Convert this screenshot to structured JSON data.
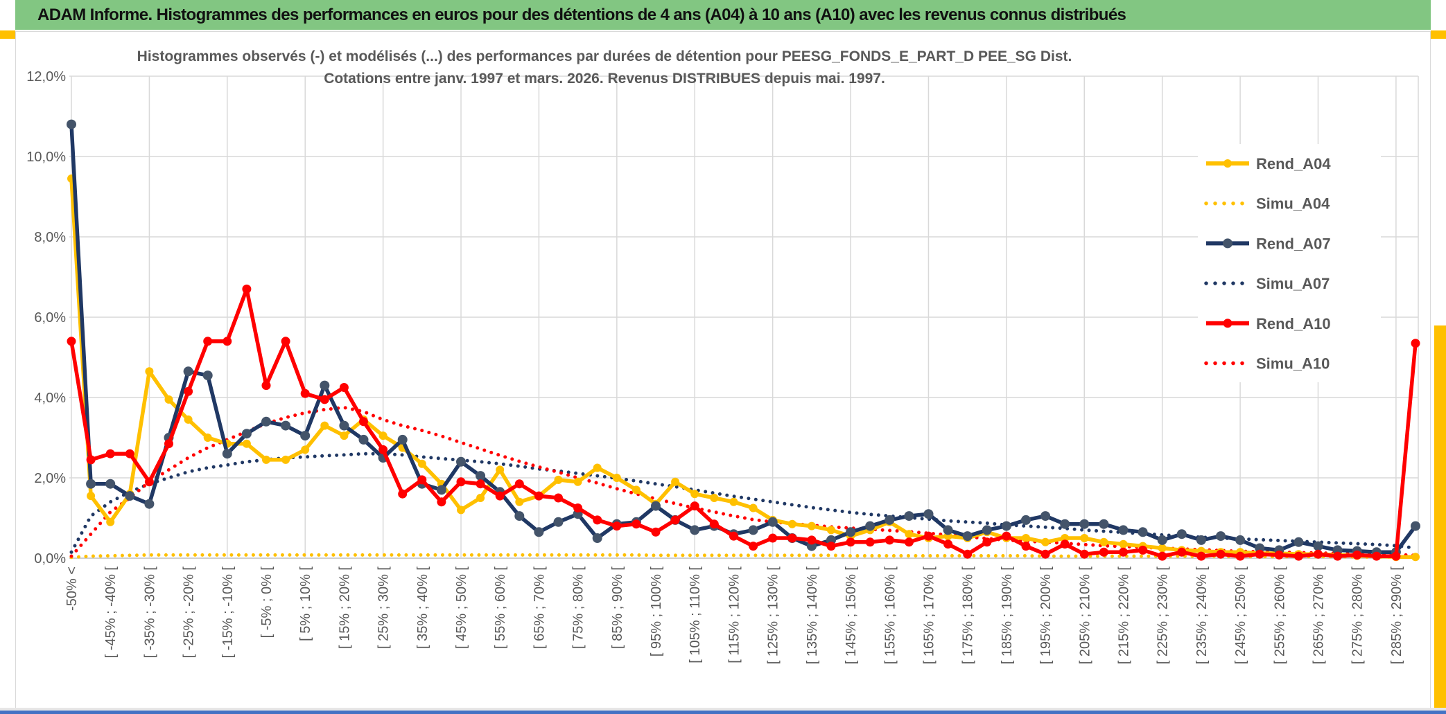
{
  "window": {
    "title": "ADAM Informe. Histogrammes des performances en euros pour des détentions de 4 ans (A04) à 10 ans (A10) avec les revenus connus distribués"
  },
  "colors": {
    "header_green": "#82C682",
    "accent_gold": "#FFC000",
    "bottom_blue": "#4472C4",
    "grid": "#D9D9D9",
    "axis": "#BFBFBF",
    "text_gray": "#595959",
    "series_yellow": "#FFC000",
    "series_navy": "#203864",
    "navy_marker": "#44546A",
    "series_red": "#FF0000"
  },
  "chart_data": {
    "type": "line",
    "title_line1": "Histogrammes observés (-) et modélisés (...) des performances par durées de détention pour PEESG_FONDS_E_PART_D PEE_SG Dist.",
    "title_line2": "Cotations entre janv. 1997 et mars. 2026. Revenus DISTRIBUES depuis mai. 1997.",
    "ylim": [
      0,
      12
    ],
    "ytick_labels": [
      "0,0%",
      "2,0%",
      "4,0%",
      "6,0%",
      "8,0%",
      "10,0%",
      "12,0%"
    ],
    "grid": "both",
    "legend_position": "right-overlay",
    "n_points": 70,
    "x_label_every": 2,
    "grid_every_n_points": 4,
    "x_labels": [
      "-50% <",
      "[ -45% ; -40% [",
      "[ -35% ; -30% [",
      "[ -25% ; -20% [",
      "[ -15% ; -10% [",
      "[ -5% ; 0% [",
      "[ 5% ; 10% [",
      "[ 15% ; 20% [",
      "[ 25% ; 30% [",
      "[ 35% ; 40% [",
      "[ 45% ; 50% [",
      "[ 55% ; 60% [",
      "[ 65% ; 70% [",
      "[ 75% ; 80% [",
      "[ 85% ; 90% [",
      "[ 95% ; 100% [",
      "[ 105% ; 110% [",
      "[ 115% ; 120% [",
      "[ 125% ; 130% [",
      "[ 135% ; 140% [",
      "[ 145% ; 150% [",
      "[ 155% ; 160% [",
      "[ 165% ; 170% [",
      "[ 175% ; 180% [",
      "[ 185% ; 190% [",
      "[ 195% ; 200% [",
      "[ 205% ; 210% [",
      "[ 215% ; 220% [",
      "[ 225% ; 230% [",
      "[ 235% ; 240% [",
      "[ 245% ; 250% [",
      "[ 255% ; 260% [",
      "[ 265% ; 270% [",
      "[ 275% ; 280% [",
      "[ 285% ; 290% ["
    ],
    "series": [
      {
        "name": "Rend_A04",
        "color": "#FFC000",
        "marker": "#FFC000",
        "marker_r": 6,
        "style": "solid",
        "values": [
          9.45,
          1.55,
          0.9,
          1.6,
          4.65,
          3.95,
          3.45,
          3.0,
          2.85,
          2.85,
          2.45,
          2.45,
          2.7,
          3.3,
          3.05,
          3.45,
          3.05,
          2.75,
          2.35,
          1.85,
          1.2,
          1.5,
          2.2,
          1.4,
          1.55,
          1.95,
          1.9,
          2.25,
          2.0,
          1.7,
          1.35,
          1.9,
          1.6,
          1.5,
          1.4,
          1.25,
          0.95,
          0.85,
          0.8,
          0.7,
          0.55,
          0.7,
          0.9,
          0.6,
          0.5,
          0.55,
          0.5,
          0.65,
          0.5,
          0.5,
          0.4,
          0.5,
          0.5,
          0.4,
          0.35,
          0.3,
          0.25,
          0.2,
          0.18,
          0.15,
          0.15,
          0.12,
          0.12,
          0.1,
          0.1,
          0.08,
          0.06,
          0.05,
          0.03,
          0.03
        ]
      },
      {
        "name": "Simu_A04",
        "color": "#FFC000",
        "style": "dotted",
        "values": [
          0.02,
          0.05,
          0.06,
          0.07,
          0.08,
          0.08,
          0.08,
          0.08,
          0.08,
          0.08,
          0.08,
          0.08,
          0.08,
          0.08,
          0.08,
          0.08,
          0.08,
          0.08,
          0.08,
          0.08,
          0.08,
          0.08,
          0.08,
          0.08,
          0.08,
          0.08,
          0.08,
          0.08,
          0.08,
          0.08,
          0.07,
          0.07,
          0.07,
          0.07,
          0.07,
          0.07,
          0.07,
          0.07,
          0.07,
          0.07,
          0.06,
          0.06,
          0.06,
          0.06,
          0.06,
          0.06,
          0.06,
          0.06,
          0.06,
          0.06,
          0.05,
          0.05,
          0.05,
          0.05,
          0.05,
          0.05,
          0.05,
          0.05,
          0.05,
          0.05,
          0.04,
          0.04,
          0.04,
          0.04,
          0.04,
          0.04,
          0.03,
          0.03,
          0.03,
          0.03
        ]
      },
      {
        "name": "Rend_A07",
        "color": "#203864",
        "marker": "#44546A",
        "marker_r": 7,
        "style": "solid",
        "values": [
          10.8,
          1.85,
          1.85,
          1.55,
          1.35,
          3.0,
          4.65,
          4.55,
          2.6,
          3.1,
          3.4,
          3.3,
          3.05,
          4.3,
          3.3,
          2.95,
          2.5,
          2.95,
          1.85,
          1.7,
          2.4,
          2.05,
          1.65,
          1.05,
          0.65,
          0.9,
          1.1,
          0.5,
          0.85,
          0.9,
          1.3,
          0.95,
          0.7,
          0.8,
          0.6,
          0.7,
          0.9,
          0.5,
          0.3,
          0.45,
          0.65,
          0.8,
          0.95,
          1.05,
          1.1,
          0.7,
          0.55,
          0.7,
          0.8,
          0.95,
          1.05,
          0.85,
          0.85,
          0.85,
          0.7,
          0.65,
          0.45,
          0.6,
          0.45,
          0.55,
          0.45,
          0.25,
          0.2,
          0.4,
          0.3,
          0.2,
          0.18,
          0.15,
          0.15,
          0.8
        ]
      },
      {
        "name": "Simu_A07",
        "color": "#203864",
        "style": "dotted",
        "values": [
          0.15,
          1.05,
          1.4,
          1.65,
          1.85,
          2.0,
          2.15,
          2.25,
          2.32,
          2.4,
          2.45,
          2.5,
          2.52,
          2.55,
          2.57,
          2.6,
          2.6,
          2.57,
          2.52,
          2.48,
          2.44,
          2.4,
          2.35,
          2.29,
          2.22,
          2.17,
          2.11,
          2.05,
          1.99,
          1.92,
          1.85,
          1.78,
          1.7,
          1.62,
          1.54,
          1.47,
          1.4,
          1.33,
          1.26,
          1.2,
          1.14,
          1.09,
          1.05,
          1.01,
          0.97,
          0.93,
          0.9,
          0.87,
          0.83,
          0.8,
          0.77,
          0.74,
          0.7,
          0.67,
          0.64,
          0.61,
          0.58,
          0.55,
          0.52,
          0.5,
          0.48,
          0.46,
          0.44,
          0.42,
          0.4,
          0.38,
          0.36,
          0.34,
          0.31,
          0.25
        ]
      },
      {
        "name": "Rend_A10",
        "color": "#FF0000",
        "marker": "#FF0000",
        "marker_r": 6.5,
        "style": "solid",
        "values": [
          5.4,
          2.45,
          2.6,
          2.6,
          1.9,
          2.85,
          4.15,
          5.4,
          5.4,
          6.7,
          4.3,
          5.4,
          4.1,
          3.95,
          4.25,
          3.4,
          2.7,
          1.6,
          1.95,
          1.4,
          1.9,
          1.85,
          1.55,
          1.85,
          1.55,
          1.5,
          1.25,
          0.95,
          0.8,
          0.85,
          0.65,
          0.95,
          1.3,
          0.85,
          0.55,
          0.3,
          0.5,
          0.5,
          0.45,
          0.3,
          0.4,
          0.4,
          0.45,
          0.4,
          0.55,
          0.35,
          0.1,
          0.4,
          0.55,
          0.3,
          0.1,
          0.35,
          0.1,
          0.15,
          0.15,
          0.2,
          0.05,
          0.15,
          0.05,
          0.1,
          0.05,
          0.1,
          0.08,
          0.05,
          0.1,
          0.05,
          0.08,
          0.05,
          0.05,
          5.35
        ]
      },
      {
        "name": "Simu_A10",
        "color": "#FF0000",
        "style": "dotted",
        "values": [
          0.05,
          0.6,
          1.15,
          1.5,
          1.9,
          2.2,
          2.5,
          2.75,
          2.95,
          3.15,
          3.35,
          3.5,
          3.62,
          3.7,
          3.75,
          3.65,
          3.45,
          3.3,
          3.18,
          3.04,
          2.88,
          2.72,
          2.56,
          2.41,
          2.27,
          2.14,
          2.0,
          1.87,
          1.73,
          1.6,
          1.48,
          1.36,
          1.25,
          1.15,
          1.05,
          0.96,
          0.9,
          0.86,
          0.82,
          0.78,
          0.75,
          0.72,
          0.69,
          0.66,
          0.62,
          0.58,
          0.53,
          0.49,
          0.45,
          0.42,
          0.4,
          0.37,
          0.34,
          0.31,
          0.29,
          0.27,
          0.25,
          0.23,
          0.21,
          0.19,
          0.17,
          0.16,
          0.15,
          0.14,
          0.13,
          0.12,
          0.11,
          0.1,
          0.09,
          0.07
        ]
      }
    ]
  }
}
